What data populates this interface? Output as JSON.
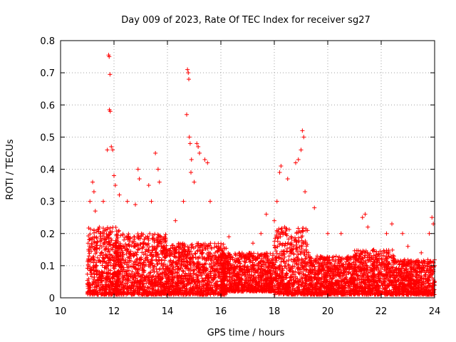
{
  "chart_data": {
    "type": "scatter",
    "title": "Day 009 of 2023, Rate Of TEC Index for receiver sg27",
    "xlabel": "GPS time / hours",
    "ylabel": "ROTI / TECUs",
    "xlim": [
      10,
      24
    ],
    "ylim": [
      0,
      0.8
    ],
    "x_ticks": [
      10,
      12,
      14,
      16,
      18,
      20,
      22,
      24
    ],
    "x_tick_labels": [
      "10",
      "12",
      "14",
      "16",
      "18",
      "20",
      "22",
      "24"
    ],
    "y_ticks": [
      0,
      0.1,
      0.2,
      0.3,
      0.4,
      0.5,
      0.6,
      0.7,
      0.8
    ],
    "y_tick_labels": [
      "0",
      "0.1",
      "0.2",
      "0.3",
      "0.4",
      "0.5",
      "0.6",
      "0.7",
      "0.8"
    ],
    "grid": true,
    "marker": "+",
    "color": "#ff0000",
    "series": [
      {
        "name": "sg27",
        "points": [
          [
            11.05,
            0.04
          ],
          [
            11.1,
            0.3
          ],
          [
            11.2,
            0.36
          ],
          [
            11.25,
            0.33
          ],
          [
            11.3,
            0.27
          ],
          [
            11.45,
            0.22
          ],
          [
            11.6,
            0.3
          ],
          [
            11.75,
            0.46
          ],
          [
            11.8,
            0.755
          ],
          [
            11.82,
            0.75
          ],
          [
            11.85,
            0.695
          ],
          [
            11.83,
            0.585
          ],
          [
            11.86,
            0.58
          ],
          [
            11.9,
            0.47
          ],
          [
            11.95,
            0.46
          ],
          [
            12.0,
            0.38
          ],
          [
            12.05,
            0.35
          ],
          [
            12.2,
            0.32
          ],
          [
            12.5,
            0.3
          ],
          [
            12.8,
            0.29
          ],
          [
            12.9,
            0.4
          ],
          [
            12.95,
            0.37
          ],
          [
            13.3,
            0.35
          ],
          [
            13.4,
            0.3
          ],
          [
            13.55,
            0.45
          ],
          [
            13.65,
            0.4
          ],
          [
            13.7,
            0.36
          ],
          [
            14.3,
            0.24
          ],
          [
            14.6,
            0.3
          ],
          [
            14.75,
            0.71
          ],
          [
            14.78,
            0.7
          ],
          [
            14.8,
            0.68
          ],
          [
            14.72,
            0.57
          ],
          [
            14.82,
            0.5
          ],
          [
            14.85,
            0.48
          ],
          [
            14.9,
            0.43
          ],
          [
            14.88,
            0.39
          ],
          [
            15.0,
            0.36
          ],
          [
            15.1,
            0.48
          ],
          [
            15.15,
            0.47
          ],
          [
            15.2,
            0.45
          ],
          [
            15.4,
            0.43
          ],
          [
            15.5,
            0.42
          ],
          [
            15.6,
            0.3
          ],
          [
            16.3,
            0.19
          ],
          [
            17.2,
            0.17
          ],
          [
            17.5,
            0.2
          ],
          [
            17.7,
            0.26
          ],
          [
            18.0,
            0.24
          ],
          [
            18.1,
            0.3
          ],
          [
            18.2,
            0.39
          ],
          [
            18.25,
            0.41
          ],
          [
            18.5,
            0.37
          ],
          [
            18.8,
            0.42
          ],
          [
            18.9,
            0.43
          ],
          [
            19.05,
            0.52
          ],
          [
            19.1,
            0.5
          ],
          [
            19.0,
            0.46
          ],
          [
            19.15,
            0.33
          ],
          [
            19.5,
            0.28
          ],
          [
            20.0,
            0.2
          ],
          [
            20.5,
            0.2
          ],
          [
            21.3,
            0.25
          ],
          [
            21.4,
            0.26
          ],
          [
            21.5,
            0.22
          ],
          [
            22.2,
            0.2
          ],
          [
            22.4,
            0.23
          ],
          [
            22.8,
            0.2
          ],
          [
            23.0,
            0.16
          ],
          [
            23.5,
            0.14
          ],
          [
            23.8,
            0.2
          ],
          [
            23.9,
            0.25
          ],
          [
            23.95,
            0.23
          ],
          [
            24.0,
            0.1
          ],
          [
            23.9,
            0.01
          ]
        ]
      }
    ],
    "dense_bands": [
      {
        "x_range": [
          11.0,
          12.2
        ],
        "y_range": [
          0.01,
          0.22
        ]
      },
      {
        "x_range": [
          12.0,
          14.0
        ],
        "y_range": [
          0.01,
          0.2
        ]
      },
      {
        "x_range": [
          14.0,
          16.2
        ],
        "y_range": [
          0.01,
          0.17
        ]
      },
      {
        "x_range": [
          16.0,
          18.0
        ],
        "y_range": [
          0.02,
          0.14
        ]
      },
      {
        "x_range": [
          18.0,
          19.3
        ],
        "y_range": [
          0.01,
          0.22
        ]
      },
      {
        "x_range": [
          19.3,
          21.0
        ],
        "y_range": [
          0.01,
          0.13
        ]
      },
      {
        "x_range": [
          21.0,
          22.5
        ],
        "y_range": [
          0.01,
          0.15
        ]
      },
      {
        "x_range": [
          22.5,
          24.0
        ],
        "y_range": [
          0.01,
          0.12
        ]
      }
    ]
  }
}
